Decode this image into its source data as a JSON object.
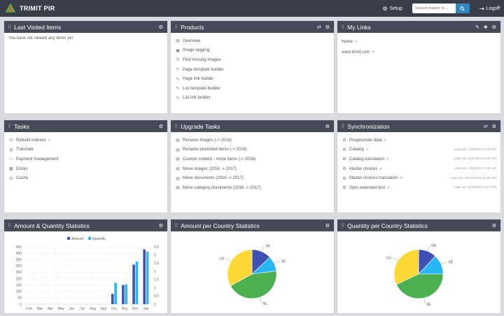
{
  "app": {
    "title": "TRIMIT PIR"
  },
  "topbar": {
    "setup_label": "Setup",
    "search_placeholder": "Search master re...",
    "logoff_label": "Logoff"
  },
  "panels": {
    "last_visited": {
      "title": "Last Visited Items",
      "empty_text": "You have not viewed any items yet"
    },
    "products": {
      "title": "Products",
      "items": [
        {
          "label": "Overview",
          "icon": "list-icon"
        },
        {
          "label": "Image tagging",
          "icon": "image-icon"
        },
        {
          "label": "Find missing images",
          "icon": "search-icon"
        },
        {
          "label": "Page template builder",
          "icon": "wrench-icon"
        },
        {
          "label": "Page link builder",
          "icon": "wrench-icon"
        },
        {
          "label": "List template builder",
          "icon": "wrench-icon"
        },
        {
          "label": "List link builder",
          "icon": "wrench-icon"
        }
      ]
    },
    "my_links": {
      "title": "My Links",
      "items": [
        {
          "label": "Home"
        },
        {
          "label": "www.trimit.com"
        }
      ]
    },
    "tasks": {
      "title": "Tasks",
      "items": [
        {
          "label": "Rebuild indexes",
          "icon": "database-icon",
          "external": true
        },
        {
          "label": "Translate",
          "icon": "globe-icon",
          "external": false
        },
        {
          "label": "Payment management",
          "icon": "credit-card-icon",
          "external": false
        },
        {
          "label": "Docks",
          "icon": "grid-icon",
          "external": false
        },
        {
          "label": "Cache",
          "icon": "database-icon",
          "external": false
        }
      ]
    },
    "upgrade_tasks": {
      "title": "Upgrade Tasks",
      "items": [
        {
          "label": "Rename images (-> 2016)"
        },
        {
          "label": "Rename promoted items (-> 2016)"
        },
        {
          "label": "Custom content - move items (-> 2016)"
        },
        {
          "label": "Move images (2016 -> 2017)"
        },
        {
          "label": "Move documents (2016 -> 2017)"
        },
        {
          "label": "Move category documents (2016 -> 2017)"
        }
      ]
    },
    "synchronization": {
      "title": "Synchronization",
      "items": [
        {
          "label": "Pregenerate data",
          "last_run": ""
        },
        {
          "label": "Catalog",
          "last_run": "Last run: 1/31/2017 1:04 AM"
        },
        {
          "label": "Catalog translation",
          "last_run": "Last run: 1/31/2017 1:05 AM"
        },
        {
          "label": "Master choices",
          "last_run": "Last run: 1/31/2017 1:05 AM"
        },
        {
          "label": "Master choices translation",
          "last_run": "Last run: 10/11/2016 12:50 AM"
        },
        {
          "label": "Sync extended text",
          "last_run": "Last run: 1/26/2017 1:47 PM"
        }
      ]
    },
    "amount_qty": {
      "title": "Amount & Quantity Statistics"
    },
    "amount_country": {
      "title": "Amount per Country Statistics"
    },
    "qty_country": {
      "title": "Quantity per Country Statistics"
    }
  },
  "colors": {
    "amount": "#3f51b5",
    "quantity": "#29b6f6",
    "header": "#464a58",
    "topbar": "#3a3d4a"
  },
  "chart_data": [
    {
      "type": "bar",
      "title": "",
      "categories": [
        "Feb",
        "Mar",
        "Apr",
        "May",
        "Jun",
        "Jul",
        "Aug",
        "Sep",
        "Oct",
        "Nov",
        "Dec",
        "Jan"
      ],
      "series": [
        {
          "name": "Amount",
          "axis": "left",
          "values": [
            0,
            0,
            0,
            0,
            0,
            0,
            0,
            0,
            80,
            150,
            310,
            430
          ]
        },
        {
          "name": "Quantity",
          "axis": "right",
          "values": [
            0,
            0,
            0,
            0,
            0,
            0,
            0,
            0,
            1.3,
            1.2,
            2.6,
            3.2
          ]
        }
      ],
      "ylim_left": [
        0,
        450
      ],
      "yticks_left": [
        0,
        50,
        100,
        150,
        200,
        250,
        300,
        350,
        400,
        450
      ],
      "ylim_right": [
        0,
        3.5
      ],
      "yticks_right": [
        0,
        0.5,
        1,
        1.5,
        2,
        2.5,
        3,
        3.5
      ],
      "legend": "top",
      "grid": true
    },
    {
      "type": "pie",
      "labels": [
        "DK",
        "SE",
        "NL",
        "US"
      ],
      "values": [
        13,
        10,
        44,
        33
      ],
      "colors": [
        "#3f51b5",
        "#29b6f6",
        "#4caf50",
        "#fdd835"
      ]
    },
    {
      "type": "pie",
      "labels": [
        "DK",
        "SE",
        "NL",
        "US"
      ],
      "values": [
        12,
        13,
        43,
        32
      ],
      "colors": [
        "#3f51b5",
        "#29b6f6",
        "#4caf50",
        "#fdd835"
      ]
    }
  ]
}
